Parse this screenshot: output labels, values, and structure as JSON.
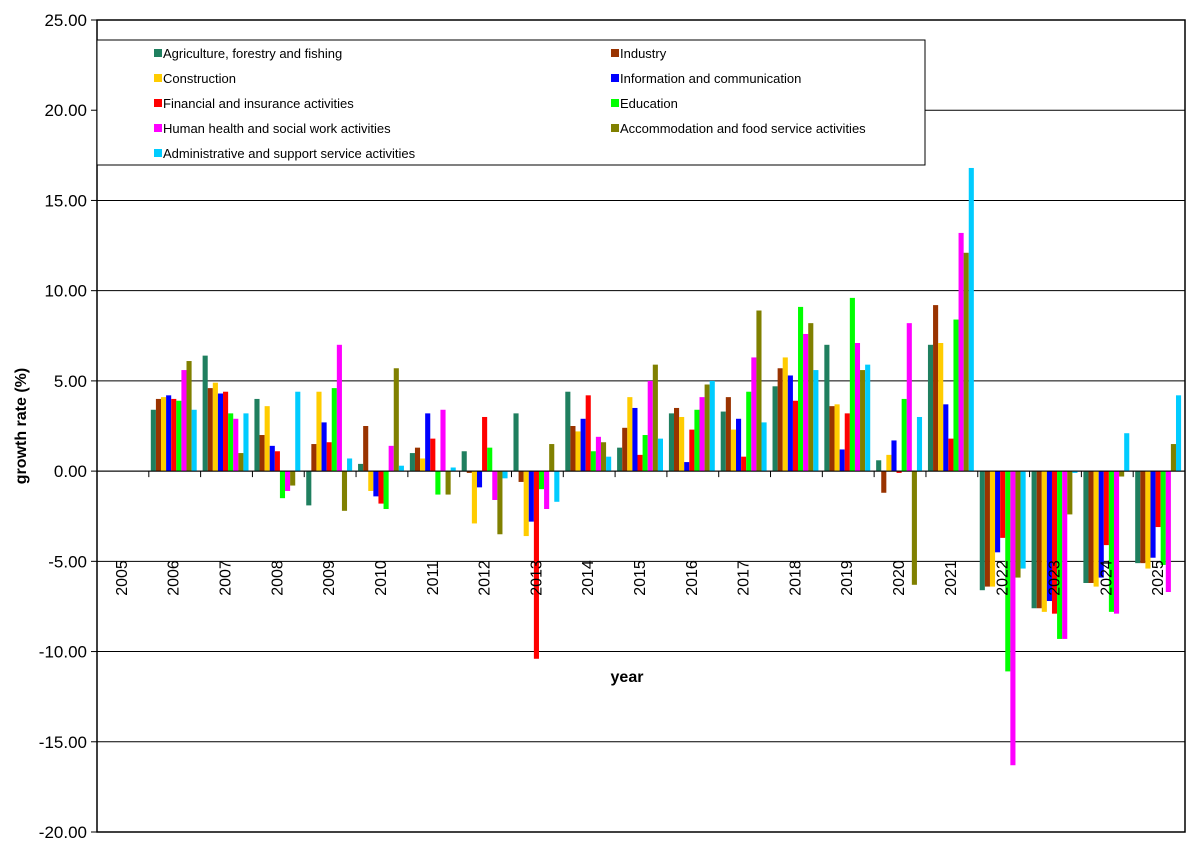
{
  "chart_data": {
    "type": "bar",
    "x_label": "year",
    "y_label": "growth rate (%)",
    "categories": [
      "2005",
      "2006",
      "2007",
      "2008",
      "2009",
      "2010",
      "2011",
      "2012",
      "2013",
      "2014",
      "2015",
      "2016",
      "2017",
      "2018",
      "2019",
      "2020",
      "2021",
      "2022",
      "2023",
      "2024",
      "2025"
    ],
    "ylim": [
      -20,
      25
    ],
    "yticks": [
      {
        "value": -20,
        "label": "-20.00"
      },
      {
        "value": -15,
        "label": "-15.00"
      },
      {
        "value": -10,
        "label": "-10.00"
      },
      {
        "value": -5,
        "label": "-5.00"
      },
      {
        "value": 0,
        "label": "0.00"
      },
      {
        "value": 5,
        "label": "5.00"
      },
      {
        "value": 10,
        "label": "10.00"
      },
      {
        "value": 15,
        "label": "15.00"
      },
      {
        "value": 20,
        "label": "20.00"
      },
      {
        "value": 25,
        "label": "25.00"
      }
    ],
    "grid": true,
    "legend": "top-left",
    "series": [
      {
        "name": "Agriculture, forestry and fishing",
        "color": "#1f7f5f",
        "values": [
          null,
          3.4,
          6.4,
          4.0,
          -1.9,
          0.4,
          1.0,
          1.1,
          3.2,
          4.4,
          1.3,
          3.2,
          3.3,
          4.7,
          7.0,
          0.6,
          7.0,
          -6.6,
          -7.6,
          -6.2,
          -5.1
        ]
      },
      {
        "name": "Industry",
        "color": "#993300",
        "values": [
          null,
          4.0,
          4.6,
          2.0,
          1.5,
          2.5,
          1.3,
          -0.1,
          -0.6,
          2.5,
          2.4,
          3.5,
          4.1,
          5.7,
          3.6,
          -1.2,
          9.2,
          -6.4,
          -7.6,
          -6.2,
          -5.1
        ]
      },
      {
        "name": "Construction",
        "color": "#ffcc00",
        "values": [
          null,
          4.1,
          4.9,
          3.6,
          4.4,
          -1.1,
          0.7,
          -2.9,
          -3.6,
          2.2,
          4.1,
          3.0,
          2.3,
          6.3,
          3.7,
          0.9,
          7.1,
          -6.4,
          -7.8,
          -6.4,
          -5.4
        ]
      },
      {
        "name": "Information and communication",
        "color": "#0000ff",
        "values": [
          null,
          4.2,
          4.3,
          1.4,
          2.7,
          -1.4,
          3.2,
          -0.9,
          -2.8,
          2.9,
          3.5,
          0.5,
          2.9,
          5.3,
          1.2,
          1.7,
          3.7,
          -4.5,
          -7.2,
          -5.9,
          -4.8
        ]
      },
      {
        "name": "Financial and insurance activities",
        "color": "#ff0000",
        "values": [
          null,
          4.0,
          4.4,
          1.1,
          1.6,
          -1.8,
          1.8,
          3.0,
          -10.4,
          4.2,
          0.9,
          2.3,
          0.8,
          3.9,
          3.2,
          -0.1,
          1.8,
          -3.7,
          -7.9,
          -4.1,
          -3.1
        ]
      },
      {
        "name": "Education",
        "color": "#00ff00",
        "values": [
          null,
          3.9,
          3.2,
          -1.5,
          4.6,
          -2.1,
          -1.3,
          1.3,
          -1.0,
          1.1,
          2.0,
          3.4,
          4.4,
          9.1,
          9.6,
          4.0,
          8.4,
          -11.1,
          -9.3,
          -7.8,
          -5.2
        ]
      },
      {
        "name": "Human health and social work activities",
        "color": "#ff00ff",
        "values": [
          null,
          5.6,
          2.9,
          -1.1,
          7.0,
          1.4,
          3.4,
          -1.6,
          -2.1,
          1.9,
          5.0,
          4.1,
          6.3,
          7.6,
          7.1,
          8.2,
          13.2,
          -16.3,
          -9.3,
          -7.9,
          -6.7
        ]
      },
      {
        "name": "Accommodation and food service activities",
        "color": "#808000",
        "values": [
          null,
          6.1,
          1.0,
          -0.8,
          -2.2,
          5.7,
          -1.3,
          -3.5,
          1.5,
          1.6,
          5.9,
          4.8,
          8.9,
          8.2,
          5.6,
          -6.3,
          12.1,
          -5.9,
          -2.4,
          -0.3,
          1.5
        ]
      },
      {
        "name": "Administrative and support service activities",
        "color": "#00ccff",
        "values": [
          null,
          3.4,
          3.2,
          4.4,
          0.7,
          0.3,
          0.2,
          -0.4,
          -1.7,
          0.8,
          1.8,
          5.0,
          2.7,
          5.6,
          5.9,
          3.0,
          16.8,
          -5.4,
          -0.1,
          2.1,
          4.2
        ]
      }
    ]
  }
}
